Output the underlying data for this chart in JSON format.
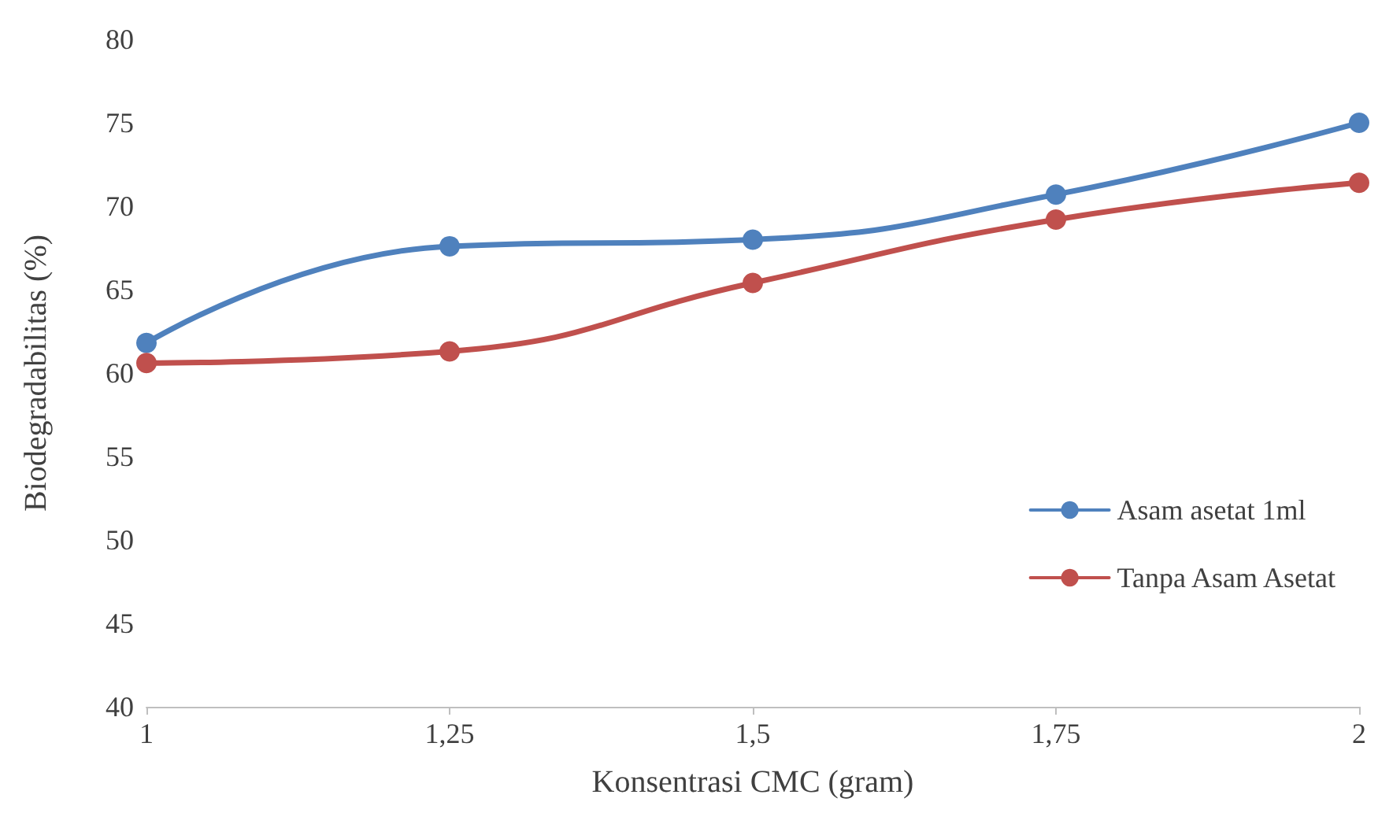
{
  "chart_data": {
    "type": "line",
    "xlabel": "Konsentrasi CMC (gram)",
    "ylabel": "Biodegradabilitas (%)",
    "x": [
      1,
      1.25,
      1.5,
      1.75,
      2
    ],
    "series": [
      {
        "name": "Asam asetat 1ml",
        "color": "#4f81bd",
        "values": [
          61.8,
          67.6,
          68.0,
          70.7,
          75.0
        ]
      },
      {
        "name": "Tanpa Asam Asetat",
        "color": "#c0504d",
        "values": [
          60.6,
          61.3,
          65.4,
          69.2,
          71.4
        ]
      }
    ],
    "xlim": [
      1,
      2
    ],
    "xticks": [
      1,
      {
        "value": 1.25,
        "label": "1,25"
      },
      {
        "value": 1.5,
        "label": "1,5"
      },
      {
        "value": 1.75,
        "label": "1,75"
      },
      2
    ],
    "ylim": [
      40,
      80
    ],
    "yticks": [
      40,
      45,
      50,
      55,
      60,
      65,
      70,
      75,
      80
    ],
    "grid": false,
    "legend": "right",
    "marker": "circle",
    "line_style": "solid"
  }
}
